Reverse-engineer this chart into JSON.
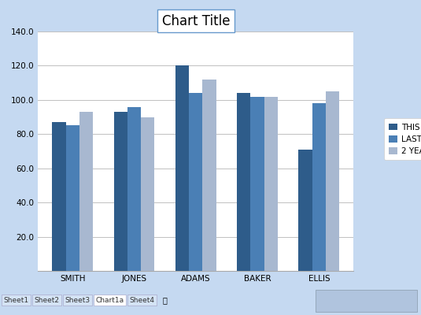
{
  "categories": [
    "SMITH",
    "JONES",
    "ADAMS",
    "BAKER",
    "ELLIS"
  ],
  "series": {
    "THIS YEAR": [
      87,
      93,
      120,
      104,
      71
    ],
    "LAST YEAR": [
      85,
      96,
      104,
      102,
      98
    ],
    "2 YEARS": [
      93,
      90,
      112,
      102,
      105
    ]
  },
  "colors": {
    "THIS YEAR": "#2E5C8A",
    "LAST YEAR": "#4A7FB5",
    "2 YEARS": "#A8B8D0"
  },
  "title": "Chart Title",
  "ylim": [
    0,
    140
  ],
  "yticks": [
    20,
    40,
    60,
    80,
    100,
    120,
    140
  ],
  "ytick_labels": [
    "20.0",
    "40.0",
    "60.0",
    "80.0",
    "100.0",
    "120.0",
    "140.0"
  ],
  "background_color": "#C5D9F1",
  "plot_bg_color": "#FFFFFF",
  "grid_color": "#C0C0C0",
  "bar_width": 0.22,
  "title_fontsize": 12,
  "tick_fontsize": 7.5,
  "legend_fontsize": 7.5,
  "tab_labels": [
    "Sheet1",
    "Sheet2",
    "Sheet3",
    "Chart1a",
    "Sheet4"
  ],
  "tab_bg": "#D4E3F5",
  "tab_active_bg": "#FFFFFF"
}
